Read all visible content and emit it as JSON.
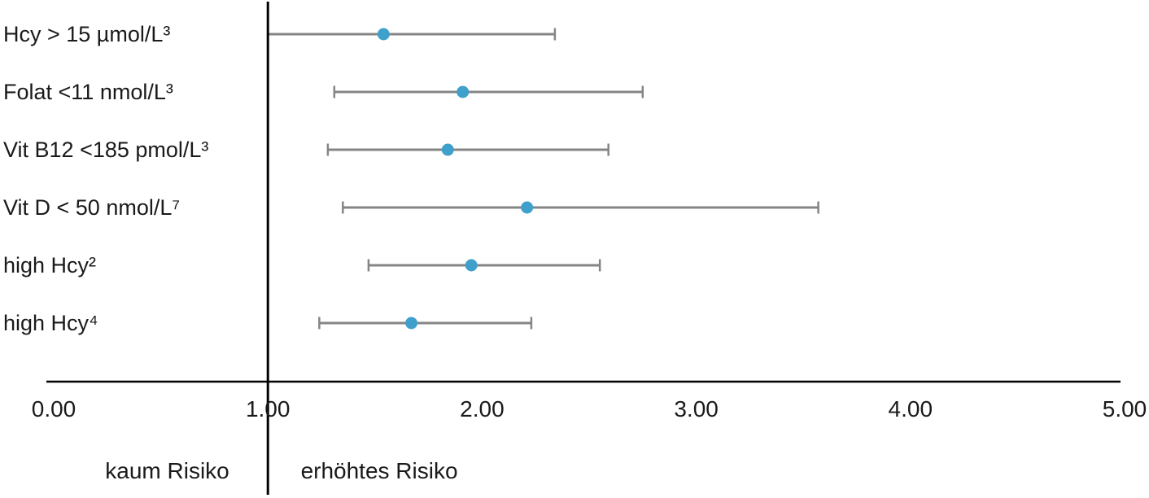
{
  "chart_data": {
    "type": "scatter",
    "subtype": "forest-plot",
    "title": "",
    "xlabel": "",
    "ylabel": "",
    "grid": false,
    "legend": "none",
    "xlim": [
      0,
      5
    ],
    "x_ticks": [
      "0.00",
      "1.00",
      "2.00",
      "3.00",
      "4.00",
      "5.00"
    ],
    "x_tick_values": [
      0,
      1,
      2,
      3,
      4,
      5
    ],
    "reference_line_x": 1.0,
    "categories": [
      "Hcy > 15 µmol/L³",
      "Folat <11 nmol/L³",
      "Vit B12 <185 pmol/L³",
      "Vit D < 50 nmol/L⁷",
      "high Hcy²",
      "high Hcy⁴"
    ],
    "series": [
      {
        "name": "risk-estimate",
        "marker": "circle",
        "values": [
          1.54,
          1.91,
          1.84,
          2.21,
          1.95,
          1.67
        ],
        "ci_low": [
          1.0,
          1.31,
          1.28,
          1.35,
          1.47,
          1.24
        ],
        "ci_high": [
          2.34,
          2.75,
          2.59,
          3.57,
          2.55,
          2.23
        ]
      }
    ],
    "annotations": [
      {
        "text": "kaum Risiko",
        "x": 0.53,
        "region": "left-of-reference"
      },
      {
        "text": "erhöhtes Risiko",
        "x": 1.52,
        "region": "right-of-reference"
      }
    ],
    "colors": {
      "marker": "#3fa0cc",
      "ci_line": "#858585",
      "axis": "#000000",
      "text": "#1a1a1a",
      "background": "#ffffff"
    }
  }
}
